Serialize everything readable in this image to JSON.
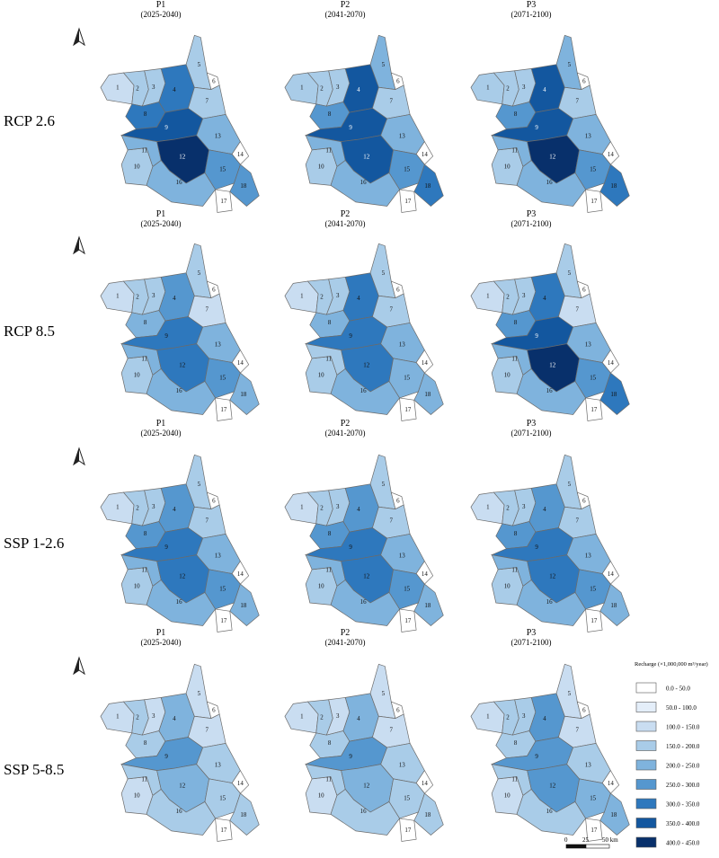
{
  "periods": [
    {
      "label": "P1",
      "range": "(2025-2040)"
    },
    {
      "label": "P2",
      "range": "(2041-2070)"
    },
    {
      "label": "P3",
      "range": "(2071-2100)"
    }
  ],
  "scenarios": [
    "RCP 2.6",
    "RCP 8.5",
    "SSP 1-2.6",
    "SSP 5-8.5"
  ],
  "legend": {
    "title": "Recharge (×1,000,000 m³/year)",
    "classes": [
      {
        "label": "0.0 - 50.0",
        "color": "#ffffff"
      },
      {
        "label": "50.0 - 100.0",
        "color": "#e4eef9"
      },
      {
        "label": "100.0 - 150.0",
        "color": "#c9ddf1"
      },
      {
        "label": "150.0 - 200.0",
        "color": "#a9cce8"
      },
      {
        "label": "200.0 - 250.0",
        "color": "#7fb3dd"
      },
      {
        "label": "250.0 - 300.0",
        "color": "#5597cf"
      },
      {
        "label": "300.0 - 350.0",
        "color": "#2e78bd"
      },
      {
        "label": "350.0 - 400.0",
        "color": "#13579f"
      },
      {
        "label": "400.0 - 450.0",
        "color": "#08306b"
      }
    ]
  },
  "scale_bar": {
    "labels": [
      "0",
      "25",
      "50 km"
    ]
  },
  "north_arrow": {
    "icon": "north-arrow-icon"
  },
  "region_labels": [
    "1",
    "2",
    "3",
    "4",
    "5",
    "6",
    "7",
    "8",
    "9",
    "10",
    "11",
    "12",
    "13",
    "14",
    "15",
    "16",
    "17",
    "18"
  ],
  "class_maps": [
    [
      [
        2,
        3,
        3,
        6,
        3,
        0,
        3,
        6,
        7,
        3,
        4,
        8,
        4,
        0,
        5,
        4,
        0,
        5
      ],
      [
        3,
        3,
        3,
        7,
        4,
        0,
        3,
        5,
        7,
        3,
        4,
        7,
        4,
        0,
        5,
        4,
        0,
        6
      ],
      [
        3,
        3,
        3,
        7,
        4,
        0,
        3,
        5,
        7,
        3,
        4,
        8,
        4,
        0,
        5,
        4,
        0,
        6
      ]
    ],
    [
      [
        2,
        3,
        3,
        5,
        3,
        0,
        2,
        4,
        6,
        3,
        4,
        6,
        4,
        0,
        5,
        4,
        0,
        4
      ],
      [
        2,
        3,
        3,
        6,
        3,
        0,
        3,
        4,
        6,
        3,
        3,
        6,
        4,
        0,
        4,
        4,
        0,
        4
      ],
      [
        2,
        3,
        3,
        6,
        3,
        0,
        2,
        5,
        7,
        3,
        4,
        8,
        4,
        0,
        5,
        4,
        0,
        6
      ]
    ],
    [
      [
        2,
        3,
        3,
        5,
        3,
        0,
        3,
        5,
        6,
        3,
        4,
        6,
        4,
        0,
        5,
        4,
        0,
        4
      ],
      [
        2,
        3,
        3,
        5,
        3,
        0,
        3,
        5,
        6,
        3,
        4,
        6,
        4,
        0,
        5,
        4,
        0,
        4
      ],
      [
        2,
        3,
        3,
        5,
        3,
        0,
        3,
        5,
        6,
        3,
        4,
        6,
        4,
        0,
        5,
        4,
        0,
        4
      ]
    ],
    [
      [
        2,
        3,
        2,
        4,
        2,
        0,
        2,
        3,
        5,
        2,
        3,
        4,
        3,
        0,
        3,
        3,
        0,
        3
      ],
      [
        2,
        3,
        2,
        4,
        2,
        0,
        2,
        3,
        5,
        2,
        3,
        4,
        3,
        0,
        3,
        3,
        0,
        3
      ],
      [
        2,
        3,
        3,
        5,
        2,
        0,
        2,
        3,
        5,
        2,
        3,
        5,
        3,
        0,
        4,
        3,
        0,
        4
      ]
    ]
  ]
}
